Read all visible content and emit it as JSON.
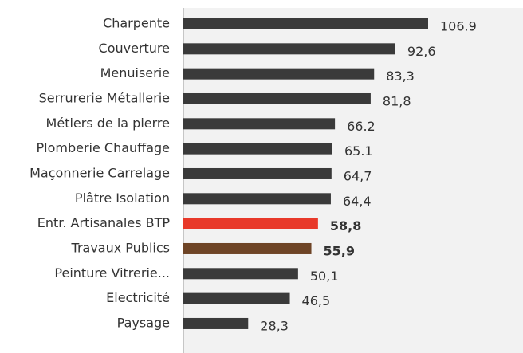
{
  "chart_data": {
    "type": "hbar",
    "categories": [
      "Charpente",
      "Couverture",
      "Menuiserie",
      "Serrurerie Métallerie",
      "Métiers de la pierre",
      "Plomberie Chauffage",
      "Maçonnerie Carrelage",
      "Plâtre Isolation",
      "Entr. Artisanales BTP",
      "Travaux Publics",
      "Peinture Vitrerie...",
      "Electricité",
      "Paysage"
    ],
    "values": [
      106.9,
      92.6,
      83.3,
      81.8,
      66.2,
      65.1,
      64.7,
      64.4,
      58.8,
      55.9,
      50.1,
      46.5,
      28.3
    ],
    "value_labels": [
      "106.9",
      "92,6",
      "83,3",
      "81,8",
      "66.2",
      "65.1",
      "64,7",
      "64,4",
      "58,8",
      "55,9",
      "50,1",
      "46,5",
      "28,3"
    ],
    "color": "#3a3a3a",
    "colors": [
      "#3a3a3a",
      "#3a3a3a",
      "#3a3a3a",
      "#3a3a3a",
      "#3a3a3a",
      "#3a3a3a",
      "#3a3a3a",
      "#3a3a3a",
      "#e8392a",
      "#6e4426",
      "#3a3a3a",
      "#3a3a3a",
      "#3a3a3a"
    ]
  }
}
